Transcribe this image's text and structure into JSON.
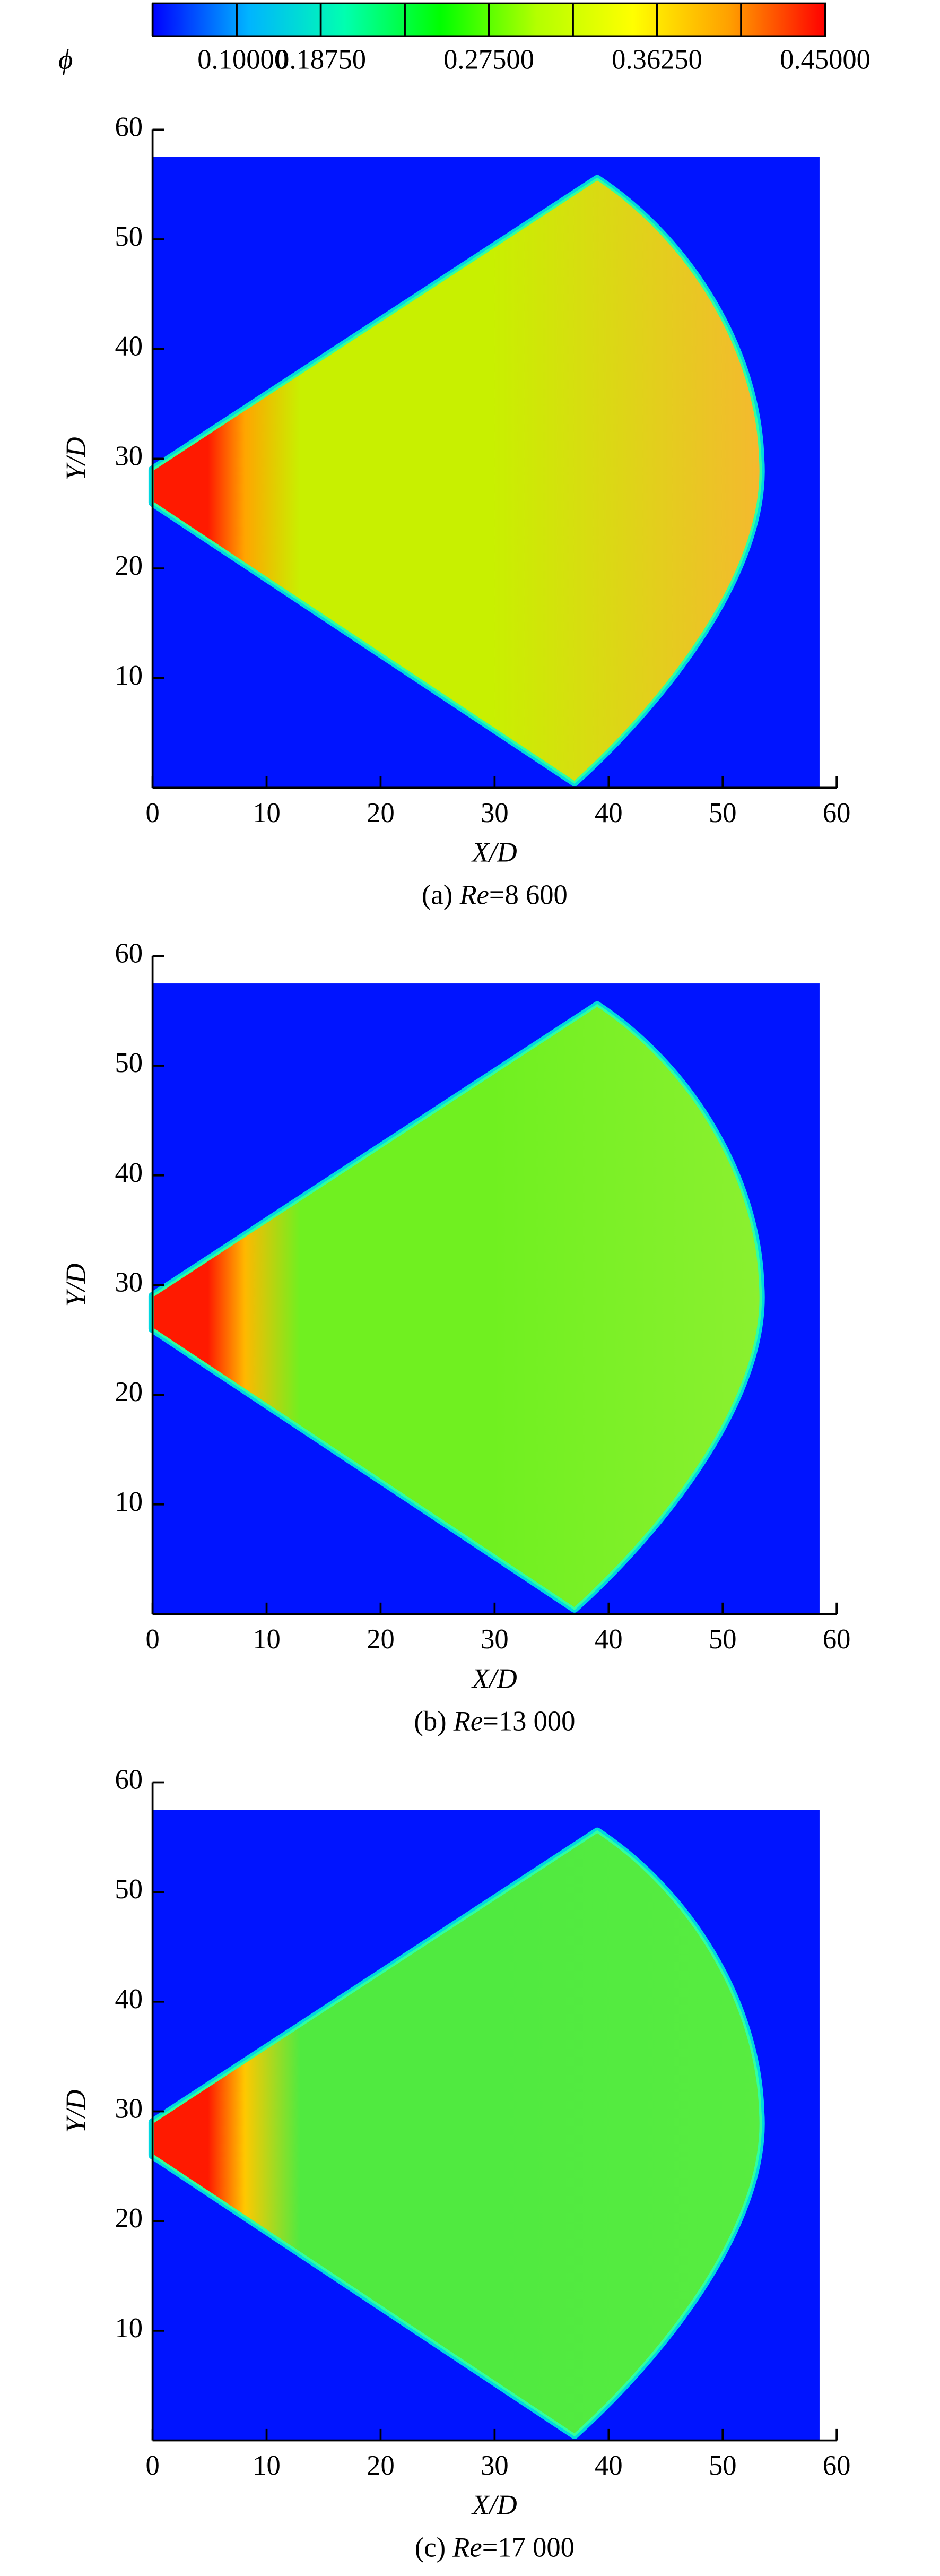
{
  "chart_data": [
    {
      "type": "colorbar",
      "label": "ϕ",
      "lim": [
        0.1,
        0.45
      ],
      "ticks": [
        {
          "value": 0.1,
          "label": "0.10000"
        },
        {
          "value": 0.1875,
          "label": "0.18750"
        },
        {
          "value": 0.275,
          "label": "0.27500"
        },
        {
          "value": 0.3625,
          "label": "0.36250"
        },
        {
          "value": 0.45,
          "label": "0.45000"
        }
      ],
      "colormap": [
        "#0000ff",
        "#00b4ff",
        "#00ffb0",
        "#00ff00",
        "#b4ff00",
        "#ffff00",
        "#ffa000",
        "#ff0000"
      ]
    },
    {
      "type": "contour",
      "caption_label": "(a)",
      "caption_var": "Re",
      "caption_value": "=8 600",
      "xlabel": "X/D",
      "ylabel": "Y/D",
      "xlim": [
        0,
        60
      ],
      "ylim": [
        0,
        60
      ],
      "xticks": [
        0,
        10,
        20,
        30,
        40,
        50,
        60
      ],
      "yticks": [
        10,
        20,
        30,
        40,
        50,
        60
      ],
      "field_colors": [
        "#ff1a00",
        "#ffa500",
        "#c8f000",
        "#f5b830"
      ]
    },
    {
      "type": "contour",
      "caption_label": "(b)",
      "caption_var": "Re",
      "caption_value": "=13 000",
      "xlabel": "X/D",
      "ylabel": "Y/D",
      "xlim": [
        0,
        60
      ],
      "ylim": [
        0,
        60
      ],
      "xticks": [
        0,
        10,
        20,
        30,
        40,
        50,
        60
      ],
      "yticks": [
        10,
        20,
        30,
        40,
        50,
        60
      ],
      "field_colors": [
        "#ff1a00",
        "#ffb800",
        "#70f020",
        "#8cf030"
      ]
    },
    {
      "type": "contour",
      "caption_label": "(c)",
      "caption_var": "Re",
      "caption_value": "=17 000",
      "xlabel": "X/D",
      "ylabel": "Y/D",
      "xlim": [
        0,
        60
      ],
      "ylim": [
        0,
        60
      ],
      "xticks": [
        0,
        10,
        20,
        30,
        40,
        50,
        60
      ],
      "yticks": [
        10,
        20,
        30,
        40,
        50,
        60
      ],
      "field_colors": [
        "#ff1a00",
        "#ffc800",
        "#50ea40",
        "#58ec40"
      ]
    }
  ]
}
